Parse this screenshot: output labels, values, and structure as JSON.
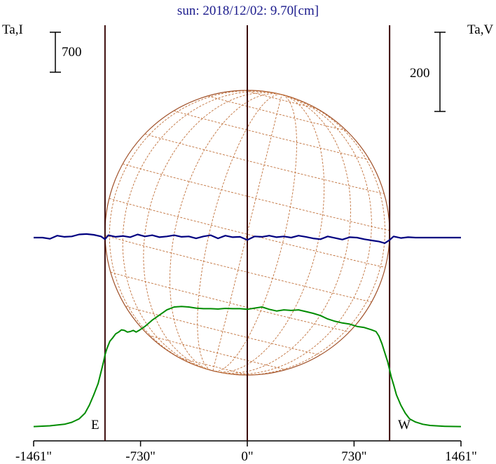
{
  "chart_data": {
    "type": "line",
    "title": "sun: 2018/12/02: 9.70[cm]",
    "left_axis_label": "Ta,I",
    "right_axis_label": "Ta,V",
    "x_unit": "arcsec",
    "xlim": [
      -1461,
      1461
    ],
    "x_ticks": [
      -1461,
      -730,
      0,
      730,
      1461
    ],
    "x_tick_labels": [
      "-1461\"",
      "-730\"",
      "0\"",
      "730\"",
      "1461\""
    ],
    "limb_markers": {
      "east_x": -973,
      "west_x": 973,
      "east_label": "E",
      "west_label": "W"
    },
    "scale_bars": {
      "left_label": "700",
      "left_value": 700,
      "right_label": "200",
      "right_value": 200
    },
    "intensity_scale": {
      "label": "Ta,I",
      "unit_per_bar": 700
    },
    "polarization_scale": {
      "label": "Ta,V",
      "unit_per_bar": 200
    },
    "series": [
      {
        "axis": "left",
        "color": "#008c00",
        "x": [
          -1461,
          -1350,
          -1250,
          -1200,
          -1150,
          -1110,
          -1080,
          -1050,
          -1020,
          -1000,
          -985,
          -973,
          -960,
          -940,
          -920,
          -900,
          -880,
          -860,
          -840,
          -820,
          -800,
          -780,
          -760,
          -740,
          -700,
          -650,
          -600,
          -550,
          -500,
          -450,
          -400,
          -350,
          -300,
          -250,
          -200,
          -150,
          -100,
          -50,
          0,
          50,
          100,
          150,
          200,
          250,
          300,
          350,
          400,
          450,
          500,
          550,
          600,
          650,
          700,
          750,
          800,
          850,
          880,
          900,
          920,
          940,
          960,
          973,
          985,
          1000,
          1020,
          1050,
          1080,
          1110,
          1150,
          1200,
          1250,
          1350,
          1461
        ],
        "values": [
          5,
          18,
          45,
          80,
          140,
          240,
          380,
          560,
          760,
          960,
          1120,
          1260,
          1370,
          1500,
          1560,
          1630,
          1660,
          1700,
          1690,
          1660,
          1670,
          1690,
          1660,
          1690,
          1760,
          1870,
          1960,
          2050,
          2100,
          2110,
          2100,
          2080,
          2070,
          2070,
          2065,
          2075,
          2070,
          2070,
          2060,
          2080,
          2100,
          2060,
          2030,
          2050,
          2040,
          2050,
          2020,
          1990,
          1950,
          1890,
          1850,
          1820,
          1800,
          1760,
          1740,
          1700,
          1670,
          1590,
          1460,
          1300,
          1140,
          1000,
          870,
          740,
          560,
          380,
          240,
          140,
          85,
          45,
          25,
          10,
          5
        ]
      },
      {
        "axis": "right",
        "color": "#000080",
        "x": [
          -1461,
          -1400,
          -1350,
          -1300,
          -1250,
          -1200,
          -1150,
          -1100,
          -1050,
          -1000,
          -973,
          -950,
          -900,
          -850,
          -800,
          -750,
          -700,
          -650,
          -600,
          -550,
          -500,
          -450,
          -400,
          -350,
          -300,
          -250,
          -200,
          -150,
          -100,
          -50,
          0,
          50,
          100,
          150,
          200,
          250,
          300,
          350,
          400,
          450,
          500,
          550,
          600,
          650,
          700,
          750,
          800,
          850,
          900,
          940,
          973,
          1000,
          1050,
          1100,
          1150,
          1200,
          1250,
          1300,
          1350,
          1400,
          1461
        ],
        "values": [
          0,
          0,
          -3,
          5,
          2,
          3,
          8,
          9,
          7,
          3,
          -4,
          6,
          2,
          4,
          1,
          8,
          3,
          6,
          1,
          3,
          6,
          2,
          3,
          -2,
          3,
          6,
          -2,
          5,
          1,
          2,
          -6,
          3,
          2,
          5,
          1,
          3,
          0,
          5,
          2,
          -2,
          -4,
          3,
          -1,
          -5,
          1,
          0,
          -4,
          -7,
          -10,
          -14,
          -6,
          3,
          -1,
          1,
          0,
          0,
          0,
          0,
          0,
          0,
          0
        ]
      }
    ]
  },
  "disk": {
    "stroke": "#a05028",
    "grid_stroke": "#c0703a",
    "radius_arcsec": 973,
    "p_angle_deg": 14,
    "b0_deg": 0.6
  },
  "colors": {
    "limb_lines": "#3a0a0a",
    "axes": "#000000",
    "title": "#1a1a8c"
  }
}
